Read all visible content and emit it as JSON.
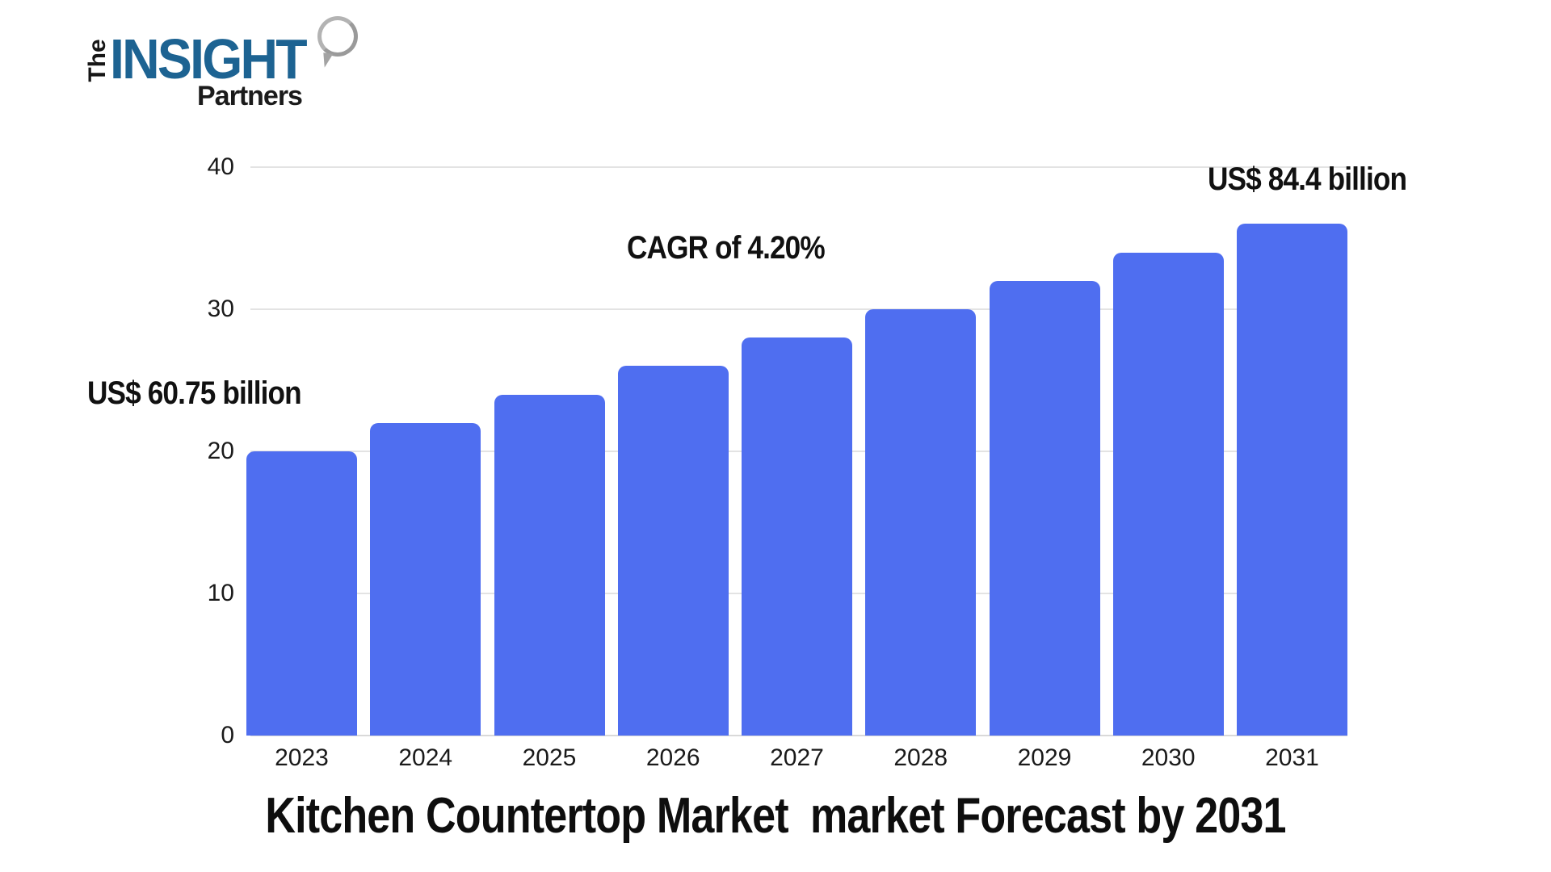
{
  "logo": {
    "the": "The",
    "insight": "INSIGHT",
    "partners": "Partners",
    "blue": "#1d6392"
  },
  "annotations": {
    "left_value": "US$ 60.75 billion",
    "cagr": "CAGR of 4.20%",
    "right_value": "US$ 84.4 billion"
  },
  "chart_data": {
    "type": "bar",
    "title": "Kitchen Countertop Market  market Forecast by 2031",
    "categories": [
      "2023",
      "2024",
      "2025",
      "2026",
      "2027",
      "2028",
      "2029",
      "2030",
      "2031"
    ],
    "values": [
      20,
      22,
      24,
      26,
      28,
      30,
      32,
      34,
      36
    ],
    "xlabel": "",
    "ylabel": "",
    "ylim": [
      0,
      40
    ],
    "yticks": [
      0,
      10,
      20,
      30,
      40
    ],
    "grid": true,
    "legend": "none",
    "bar_color": "#4f6ef0",
    "grid_color": "#e3e3e3",
    "baseline_color": "#d9d9d9",
    "axis_text_color": "#1a1a1a"
  }
}
